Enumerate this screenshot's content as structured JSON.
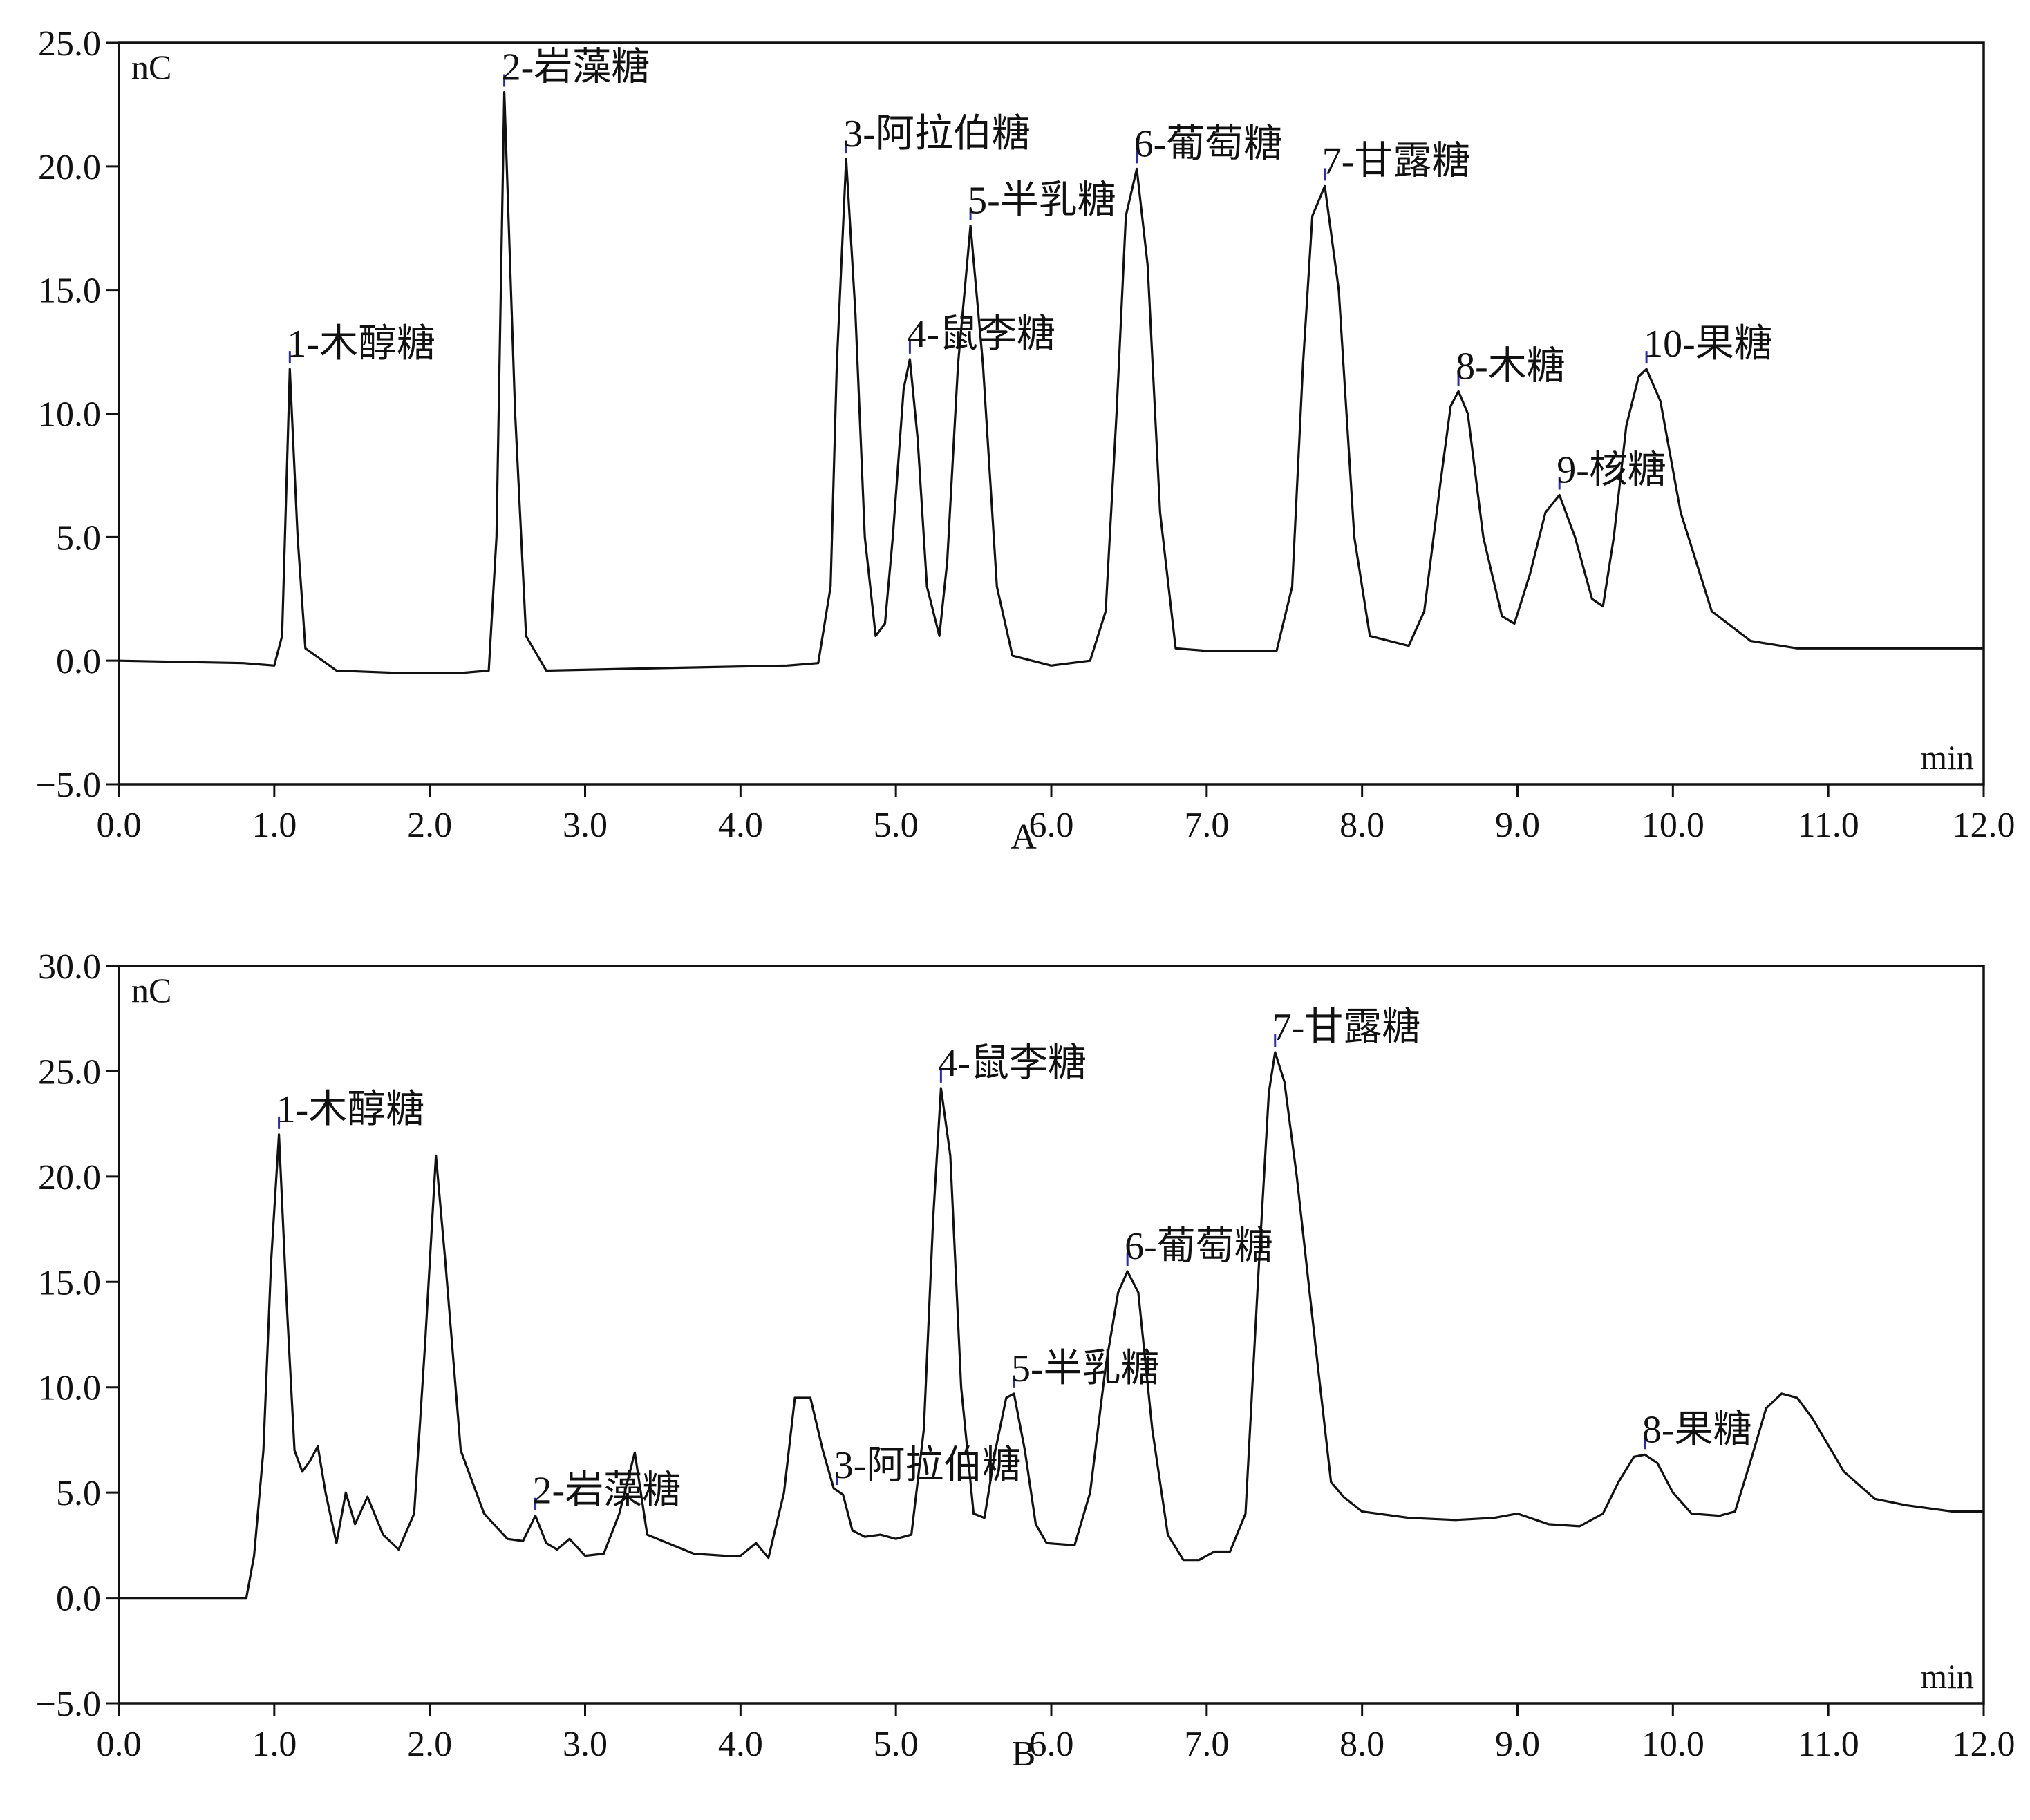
{
  "colors": {
    "curve": "#111111",
    "axis": "#111111",
    "marker": "#2b2bb8",
    "background": "#ffffff"
  },
  "chart_data": [
    {
      "type": "line",
      "panel_label": "A",
      "y_unit": "nC",
      "x_unit": "min",
      "xlim": [
        0,
        12
      ],
      "ylim": [
        -5,
        25
      ],
      "x_ticks": [
        "0.0",
        "1.0",
        "2.0",
        "3.0",
        "4.0",
        "5.0",
        "6.0",
        "7.0",
        "8.0",
        "9.0",
        "10.0",
        "11.0",
        "12.0"
      ],
      "y_ticks": [
        "25.0",
        "20.0",
        "15.0",
        "10.0",
        "5.0",
        "0.0",
        "−5.0"
      ],
      "grid": false,
      "series": [
        {
          "points": [
            [
              0,
              0
            ],
            [
              0.8,
              -0.1
            ],
            [
              1.0,
              -0.2
            ],
            [
              1.05,
              1.0
            ],
            [
              1.1,
              11.8
            ],
            [
              1.15,
              5.0
            ],
            [
              1.2,
              0.5
            ],
            [
              1.4,
              -0.4
            ],
            [
              1.8,
              -0.5
            ],
            [
              2.2,
              -0.5
            ],
            [
              2.38,
              -0.4
            ],
            [
              2.43,
              5.0
            ],
            [
              2.48,
              23.0
            ],
            [
              2.55,
              10.0
            ],
            [
              2.62,
              1.0
            ],
            [
              2.75,
              -0.4
            ],
            [
              3.5,
              -0.3
            ],
            [
              4.3,
              -0.2
            ],
            [
              4.5,
              -0.1
            ],
            [
              4.58,
              3.0
            ],
            [
              4.62,
              12.0
            ],
            [
              4.68,
              20.3
            ],
            [
              4.74,
              14.0
            ],
            [
              4.8,
              5.0
            ],
            [
              4.87,
              1.0
            ],
            [
              4.93,
              1.5
            ],
            [
              4.98,
              5.0
            ],
            [
              5.05,
              11.0
            ],
            [
              5.09,
              12.2
            ],
            [
              5.14,
              9.0
            ],
            [
              5.2,
              3.0
            ],
            [
              5.28,
              1.0
            ],
            [
              5.33,
              4.0
            ],
            [
              5.4,
              12.0
            ],
            [
              5.48,
              17.6
            ],
            [
              5.56,
              12.0
            ],
            [
              5.65,
              3.0
            ],
            [
              5.75,
              0.2
            ],
            [
              6.0,
              -0.2
            ],
            [
              6.25,
              0.0
            ],
            [
              6.35,
              2.0
            ],
            [
              6.42,
              10.0
            ],
            [
              6.48,
              18.0
            ],
            [
              6.55,
              19.9
            ],
            [
              6.62,
              16.0
            ],
            [
              6.7,
              6.0
            ],
            [
              6.8,
              0.5
            ],
            [
              7.0,
              0.4
            ],
            [
              7.45,
              0.4
            ],
            [
              7.55,
              3.0
            ],
            [
              7.62,
              12.0
            ],
            [
              7.68,
              18.0
            ],
            [
              7.76,
              19.2
            ],
            [
              7.85,
              15.0
            ],
            [
              7.95,
              5.0
            ],
            [
              8.05,
              1.0
            ],
            [
              8.3,
              0.6
            ],
            [
              8.4,
              2.0
            ],
            [
              8.5,
              7.0
            ],
            [
              8.57,
              10.3
            ],
            [
              8.62,
              10.9
            ],
            [
              8.68,
              10.0
            ],
            [
              8.78,
              5.0
            ],
            [
              8.9,
              1.8
            ],
            [
              8.98,
              1.5
            ],
            [
              9.08,
              3.5
            ],
            [
              9.18,
              6.0
            ],
            [
              9.27,
              6.7
            ],
            [
              9.37,
              5.0
            ],
            [
              9.48,
              2.5
            ],
            [
              9.55,
              2.2
            ],
            [
              9.62,
              5.0
            ],
            [
              9.7,
              9.5
            ],
            [
              9.78,
              11.5
            ],
            [
              9.83,
              11.8
            ],
            [
              9.92,
              10.5
            ],
            [
              10.05,
              6.0
            ],
            [
              10.25,
              2.0
            ],
            [
              10.5,
              0.8
            ],
            [
              10.8,
              0.5
            ],
            [
              11.5,
              0.5
            ],
            [
              12.0,
              0.5
            ]
          ]
        }
      ],
      "peaks": [
        {
          "label": "1-木醇糖",
          "x": 1.1
        },
        {
          "label": "2-岩藻糖",
          "x": 2.48
        },
        {
          "label": "3-阿拉伯糖",
          "x": 4.68
        },
        {
          "label": "4-鼠李糖",
          "x": 5.09
        },
        {
          "label": "5-半乳糖",
          "x": 5.48
        },
        {
          "label": "6-葡萄糖",
          "x": 6.55
        },
        {
          "label": "7-甘露糖",
          "x": 7.76
        },
        {
          "label": "8-木糖",
          "x": 8.62
        },
        {
          "label": "9-核糖",
          "x": 9.27
        },
        {
          "label": "10-果糖",
          "x": 9.83
        }
      ]
    },
    {
      "type": "line",
      "panel_label": "B",
      "y_unit": "nC",
      "x_unit": "min",
      "xlim": [
        0,
        12
      ],
      "ylim": [
        -5,
        30
      ],
      "x_ticks": [
        "0.0",
        "1.0",
        "2.0",
        "3.0",
        "4.0",
        "5.0",
        "6.0",
        "7.0",
        "8.0",
        "9.0",
        "10.0",
        "11.0",
        "12.0"
      ],
      "y_ticks": [
        "30.0",
        "25.0",
        "20.0",
        "15.0",
        "10.0",
        "5.0",
        "0.0",
        "−5.0"
      ],
      "grid": false,
      "series": [
        {
          "points": [
            [
              0,
              0
            ],
            [
              0.82,
              0
            ],
            [
              0.87,
              2.0
            ],
            [
              0.93,
              7.0
            ],
            [
              0.98,
              16.0
            ],
            [
              1.03,
              22.0
            ],
            [
              1.08,
              14.0
            ],
            [
              1.13,
              7.0
            ],
            [
              1.18,
              6.0
            ],
            [
              1.23,
              6.5
            ],
            [
              1.28,
              7.2
            ],
            [
              1.33,
              5.0
            ],
            [
              1.4,
              2.6
            ],
            [
              1.46,
              5.0
            ],
            [
              1.52,
              3.5
            ],
            [
              1.6,
              4.8
            ],
            [
              1.7,
              3.0
            ],
            [
              1.8,
              2.3
            ],
            [
              1.9,
              4.0
            ],
            [
              1.97,
              12.0
            ],
            [
              2.04,
              21.0
            ],
            [
              2.1,
              16.0
            ],
            [
              2.2,
              7.0
            ],
            [
              2.35,
              4.0
            ],
            [
              2.5,
              2.8
            ],
            [
              2.6,
              2.7
            ],
            [
              2.68,
              3.9
            ],
            [
              2.75,
              2.6
            ],
            [
              2.82,
              2.3
            ],
            [
              2.9,
              2.8
            ],
            [
              3.0,
              2.0
            ],
            [
              3.12,
              2.1
            ],
            [
              3.22,
              4.0
            ],
            [
              3.32,
              6.9
            ],
            [
              3.4,
              3.0
            ],
            [
              3.5,
              2.7
            ],
            [
              3.7,
              2.1
            ],
            [
              3.9,
              2.0
            ],
            [
              4.0,
              2.0
            ],
            [
              4.1,
              2.6
            ],
            [
              4.18,
              1.9
            ],
            [
              4.28,
              5.0
            ],
            [
              4.35,
              9.5
            ],
            [
              4.45,
              9.5
            ],
            [
              4.53,
              7.0
            ],
            [
              4.6,
              5.2
            ],
            [
              4.66,
              4.9
            ],
            [
              4.72,
              3.2
            ],
            [
              4.8,
              2.9
            ],
            [
              4.9,
              3.0
            ],
            [
              5.0,
              2.8
            ],
            [
              5.1,
              3.0
            ],
            [
              5.18,
              8.0
            ],
            [
              5.24,
              18.0
            ],
            [
              5.29,
              24.2
            ],
            [
              5.35,
              21.0
            ],
            [
              5.42,
              10.0
            ],
            [
              5.5,
              4.0
            ],
            [
              5.57,
              3.8
            ],
            [
              5.64,
              7.0
            ],
            [
              5.71,
              9.5
            ],
            [
              5.76,
              9.7
            ],
            [
              5.83,
              7.0
            ],
            [
              5.9,
              3.5
            ],
            [
              5.97,
              2.6
            ],
            [
              6.15,
              2.5
            ],
            [
              6.25,
              5.0
            ],
            [
              6.35,
              11.0
            ],
            [
              6.43,
              14.5
            ],
            [
              6.49,
              15.5
            ],
            [
              6.56,
              14.5
            ],
            [
              6.65,
              8.0
            ],
            [
              6.75,
              3.0
            ],
            [
              6.85,
              1.8
            ],
            [
              6.95,
              1.8
            ],
            [
              7.05,
              2.2
            ],
            [
              7.15,
              2.2
            ],
            [
              7.25,
              4.0
            ],
            [
              7.33,
              15.0
            ],
            [
              7.4,
              24.0
            ],
            [
              7.44,
              25.9
            ],
            [
              7.5,
              24.5
            ],
            [
              7.58,
              20.0
            ],
            [
              7.7,
              12.0
            ],
            [
              7.8,
              5.5
            ],
            [
              7.88,
              4.8
            ],
            [
              8.0,
              4.1
            ],
            [
              8.3,
              3.8
            ],
            [
              8.6,
              3.7
            ],
            [
              8.85,
              3.8
            ],
            [
              9.0,
              4.0
            ],
            [
              9.2,
              3.5
            ],
            [
              9.4,
              3.4
            ],
            [
              9.55,
              4.0
            ],
            [
              9.65,
              5.5
            ],
            [
              9.75,
              6.7
            ],
            [
              9.82,
              6.8
            ],
            [
              9.9,
              6.4
            ],
            [
              10.0,
              5.0
            ],
            [
              10.12,
              4.0
            ],
            [
              10.3,
              3.9
            ],
            [
              10.4,
              4.1
            ],
            [
              10.5,
              6.5
            ],
            [
              10.6,
              9.0
            ],
            [
              10.7,
              9.7
            ],
            [
              10.8,
              9.5
            ],
            [
              10.9,
              8.5
            ],
            [
              11.1,
              6.0
            ],
            [
              11.3,
              4.7
            ],
            [
              11.5,
              4.4
            ],
            [
              11.8,
              4.1
            ],
            [
              12.0,
              4.1
            ]
          ]
        }
      ],
      "peaks": [
        {
          "label": "1-木醇糖",
          "x": 1.03
        },
        {
          "label": "2-岩藻糖",
          "x": 2.68
        },
        {
          "label": "3-阿拉伯糖",
          "x": 4.62
        },
        {
          "label": "4-鼠李糖",
          "x": 5.29
        },
        {
          "label": "5-半乳糖",
          "x": 5.76
        },
        {
          "label": "6-葡萄糖",
          "x": 6.49
        },
        {
          "label": "7-甘露糖",
          "x": 7.44
        },
        {
          "label": "8-果糖",
          "x": 9.82
        }
      ]
    }
  ]
}
